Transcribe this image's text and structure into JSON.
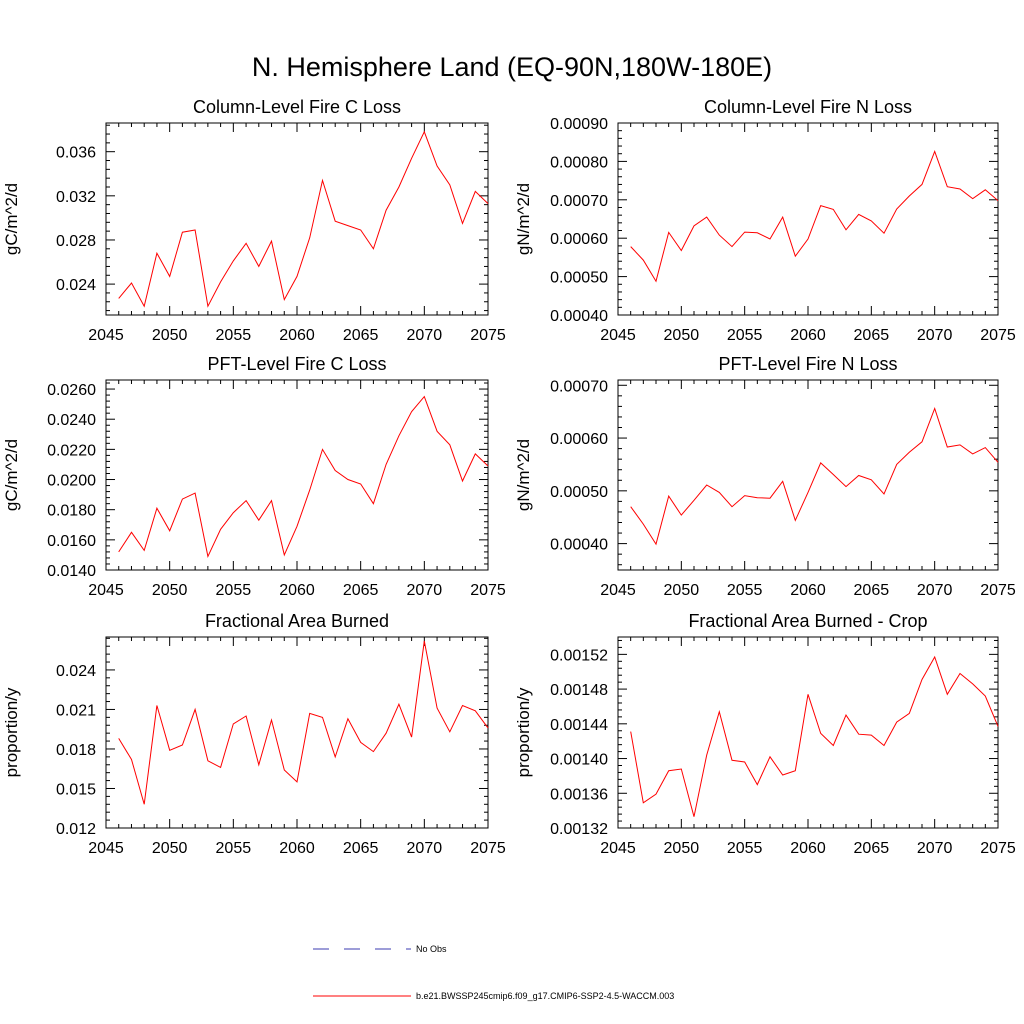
{
  "figure_title": "N. Hemisphere Land (EQ-90N,180W-180E)",
  "legend": {
    "obs_label": "No Obs",
    "obs_color": "#3b3bb0",
    "model_label": "b.e21.BWSSP245cmip6.f09_g17.CMIP6-SSP2-4.5-WACCM.003",
    "model_color": "#ff0000"
  },
  "chart_data": [
    {
      "type": "line",
      "title": "Column-Level Fire C Loss",
      "ylabel": "gC/m^2/d",
      "xlim": [
        2045,
        2075
      ],
      "ylim": [
        0.0212,
        0.0386
      ],
      "xticks": [
        2045,
        2050,
        2055,
        2060,
        2065,
        2070,
        2075
      ],
      "xtick_labels": [
        "2045",
        "2050",
        "2055",
        "2060",
        "2065",
        "2070",
        "2075"
      ],
      "yticks": [
        0.024,
        0.028,
        0.032,
        0.036
      ],
      "ytick_labels": [
        "0.024",
        "0.028",
        "0.032",
        "0.036"
      ],
      "x": [
        2046,
        2047,
        2048,
        2049,
        2050,
        2051,
        2052,
        2053,
        2054,
        2055,
        2056,
        2057,
        2058,
        2059,
        2060,
        2061,
        2062,
        2063,
        2064,
        2065,
        2066,
        2067,
        2068,
        2069,
        2070,
        2071,
        2072,
        2073,
        2074,
        2075
      ],
      "series": [
        {
          "name": "b.e21.BWSSP245cmip6.f09_g17.CMIP6-SSP2-4.5-WACCM.003",
          "values": [
            0.0227,
            0.0241,
            0.022,
            0.0268,
            0.0247,
            0.0287,
            0.0289,
            0.022,
            0.0242,
            0.0261,
            0.0277,
            0.0256,
            0.0279,
            0.0226,
            0.0247,
            0.0282,
            0.0334,
            0.0297,
            0.0293,
            0.0289,
            0.0272,
            0.0307,
            0.0328,
            0.0354,
            0.0378,
            0.0347,
            0.033,
            0.0295,
            0.0324,
            0.0313
          ]
        }
      ]
    },
    {
      "type": "line",
      "title": "Column-Level Fire N Loss",
      "ylabel": "gN/m^2/d",
      "xlim": [
        2045,
        2075
      ],
      "ylim": [
        0.0004,
        0.0009
      ],
      "xticks": [
        2045,
        2050,
        2055,
        2060,
        2065,
        2070,
        2075
      ],
      "xtick_labels": [
        "2045",
        "2050",
        "2055",
        "2060",
        "2065",
        "2070",
        "2075"
      ],
      "yticks": [
        0.0004,
        0.0005,
        0.0006,
        0.0007,
        0.0008,
        0.0009
      ],
      "ytick_labels": [
        "0.00040",
        "0.00050",
        "0.00060",
        "0.00070",
        "0.00080",
        "0.00090"
      ],
      "x": [
        2046,
        2047,
        2048,
        2049,
        2050,
        2051,
        2052,
        2053,
        2054,
        2055,
        2056,
        2057,
        2058,
        2059,
        2060,
        2061,
        2062,
        2063,
        2064,
        2065,
        2066,
        2067,
        2068,
        2069,
        2070,
        2071,
        2072,
        2073,
        2074,
        2075
      ],
      "series": [
        {
          "name": "b.e21.BWSSP245cmip6.f09_g17.CMIP6-SSP2-4.5-WACCM.003",
          "values": [
            0.000578,
            0.000543,
            0.000488,
            0.000615,
            0.000568,
            0.000632,
            0.000655,
            0.000608,
            0.000578,
            0.000616,
            0.000614,
            0.000598,
            0.000655,
            0.000553,
            0.000598,
            0.000685,
            0.000675,
            0.000622,
            0.000662,
            0.000645,
            0.000613,
            0.000676,
            0.00071,
            0.00074,
            0.000826,
            0.000734,
            0.000728,
            0.000703,
            0.000726,
            0.000698
          ]
        }
      ]
    },
    {
      "type": "line",
      "title": "PFT-Level Fire C Loss",
      "ylabel": "gC/m^2/d",
      "xlim": [
        2045,
        2075
      ],
      "ylim": [
        0.014,
        0.0266
      ],
      "xticks": [
        2045,
        2050,
        2055,
        2060,
        2065,
        2070,
        2075
      ],
      "xtick_labels": [
        "2045",
        "2050",
        "2055",
        "2060",
        "2065",
        "2070",
        "2075"
      ],
      "yticks": [
        0.014,
        0.016,
        0.018,
        0.02,
        0.022,
        0.024,
        0.026
      ],
      "ytick_labels": [
        "0.0140",
        "0.0160",
        "0.0180",
        "0.0200",
        "0.0220",
        "0.0240",
        "0.0260"
      ],
      "x": [
        2046,
        2047,
        2048,
        2049,
        2050,
        2051,
        2052,
        2053,
        2054,
        2055,
        2056,
        2057,
        2058,
        2059,
        2060,
        2061,
        2062,
        2063,
        2064,
        2065,
        2066,
        2067,
        2068,
        2069,
        2070,
        2071,
        2072,
        2073,
        2074,
        2075
      ],
      "series": [
        {
          "name": "b.e21.BWSSP245cmip6.f09_g17.CMIP6-SSP2-4.5-WACCM.003",
          "values": [
            0.0152,
            0.0165,
            0.0153,
            0.0181,
            0.0166,
            0.0187,
            0.0191,
            0.0149,
            0.0167,
            0.0178,
            0.0186,
            0.0173,
            0.0186,
            0.015,
            0.0169,
            0.0193,
            0.022,
            0.0206,
            0.02,
            0.0197,
            0.0184,
            0.021,
            0.0229,
            0.0245,
            0.0255,
            0.0232,
            0.0223,
            0.0199,
            0.0217,
            0.0209
          ]
        }
      ]
    },
    {
      "type": "line",
      "title": "PFT-Level Fire N Loss",
      "ylabel": "gN/m^2/d",
      "xlim": [
        2045,
        2075
      ],
      "ylim": [
        0.00035,
        0.00071
      ],
      "xticks": [
        2045,
        2050,
        2055,
        2060,
        2065,
        2070,
        2075
      ],
      "xtick_labels": [
        "2045",
        "2050",
        "2055",
        "2060",
        "2065",
        "2070",
        "2075"
      ],
      "yticks": [
        0.0004,
        0.0005,
        0.0006,
        0.0007
      ],
      "ytick_labels": [
        "0.00040",
        "0.00050",
        "0.00060",
        "0.00070"
      ],
      "x": [
        2046,
        2047,
        2048,
        2049,
        2050,
        2051,
        2052,
        2053,
        2054,
        2055,
        2056,
        2057,
        2058,
        2059,
        2060,
        2061,
        2062,
        2063,
        2064,
        2065,
        2066,
        2067,
        2068,
        2069,
        2070,
        2071,
        2072,
        2073,
        2074,
        2075
      ],
      "series": [
        {
          "name": "b.e21.BWSSP245cmip6.f09_g17.CMIP6-SSP2-4.5-WACCM.003",
          "values": [
            0.00047,
            0.000437,
            0.000399,
            0.00049,
            0.000454,
            0.000482,
            0.000511,
            0.000497,
            0.00047,
            0.000491,
            0.000487,
            0.000486,
            0.000518,
            0.000444,
            0.000497,
            0.000553,
            0.000531,
            0.000508,
            0.000529,
            0.000521,
            0.000494,
            0.00055,
            0.000573,
            0.000593,
            0.000656,
            0.000583,
            0.000587,
            0.00057,
            0.000582,
            0.000554
          ]
        }
      ]
    },
    {
      "type": "line",
      "title": "Fractional Area Burned",
      "ylabel": "proportion/y",
      "xlim": [
        2045,
        2075
      ],
      "ylim": [
        0.012,
        0.0265
      ],
      "xticks": [
        2045,
        2050,
        2055,
        2060,
        2065,
        2070,
        2075
      ],
      "xtick_labels": [
        "2045",
        "2050",
        "2055",
        "2060",
        "2065",
        "2070",
        "2075"
      ],
      "yticks": [
        0.012,
        0.015,
        0.018,
        0.021,
        0.024
      ],
      "ytick_labels": [
        "0.012",
        "0.015",
        "0.018",
        "0.021",
        "0.024"
      ],
      "x": [
        2046,
        2047,
        2048,
        2049,
        2050,
        2051,
        2052,
        2053,
        2054,
        2055,
        2056,
        2057,
        2058,
        2059,
        2060,
        2061,
        2062,
        2063,
        2064,
        2065,
        2066,
        2067,
        2068,
        2069,
        2070,
        2071,
        2072,
        2073,
        2074,
        2075
      ],
      "series": [
        {
          "name": "b.e21.BWSSP245cmip6.f09_g17.CMIP6-SSP2-4.5-WACCM.003",
          "values": [
            0.0188,
            0.0172,
            0.0138,
            0.0213,
            0.0179,
            0.0183,
            0.021,
            0.0171,
            0.0166,
            0.0199,
            0.0205,
            0.0168,
            0.0202,
            0.0164,
            0.0155,
            0.0207,
            0.0204,
            0.0174,
            0.0203,
            0.0185,
            0.0178,
            0.0192,
            0.0214,
            0.0189,
            0.0262,
            0.0211,
            0.0193,
            0.0213,
            0.0209,
            0.0196
          ]
        }
      ]
    },
    {
      "type": "line",
      "title": "Fractional Area Burned - Crop",
      "ylabel": "proportion/y",
      "xlim": [
        2045,
        2075
      ],
      "ylim": [
        0.00132,
        0.00154
      ],
      "xticks": [
        2045,
        2050,
        2055,
        2060,
        2065,
        2070,
        2075
      ],
      "xtick_labels": [
        "2045",
        "2050",
        "2055",
        "2060",
        "2065",
        "2070",
        "2075"
      ],
      "yticks": [
        0.00132,
        0.00136,
        0.0014,
        0.00144,
        0.00148,
        0.00152
      ],
      "ytick_labels": [
        "0.00132",
        "0.00136",
        "0.00140",
        "0.00144",
        "0.00148",
        "0.00152"
      ],
      "x": [
        2046,
        2047,
        2048,
        2049,
        2050,
        2051,
        2052,
        2053,
        2054,
        2055,
        2056,
        2057,
        2058,
        2059,
        2060,
        2061,
        2062,
        2063,
        2064,
        2065,
        2066,
        2067,
        2068,
        2069,
        2070,
        2071,
        2072,
        2073,
        2074,
        2075
      ],
      "series": [
        {
          "name": "b.e21.BWSSP245cmip6.f09_g17.CMIP6-SSP2-4.5-WACCM.003",
          "values": [
            0.001431,
            0.001349,
            0.001359,
            0.001386,
            0.001388,
            0.001333,
            0.001404,
            0.001454,
            0.001398,
            0.001396,
            0.00137,
            0.001402,
            0.001381,
            0.001386,
            0.001474,
            0.001429,
            0.001415,
            0.00145,
            0.001428,
            0.001427,
            0.001415,
            0.001442,
            0.001452,
            0.001491,
            0.001517,
            0.001474,
            0.001498,
            0.001486,
            0.001472,
            0.001437
          ]
        }
      ]
    }
  ]
}
